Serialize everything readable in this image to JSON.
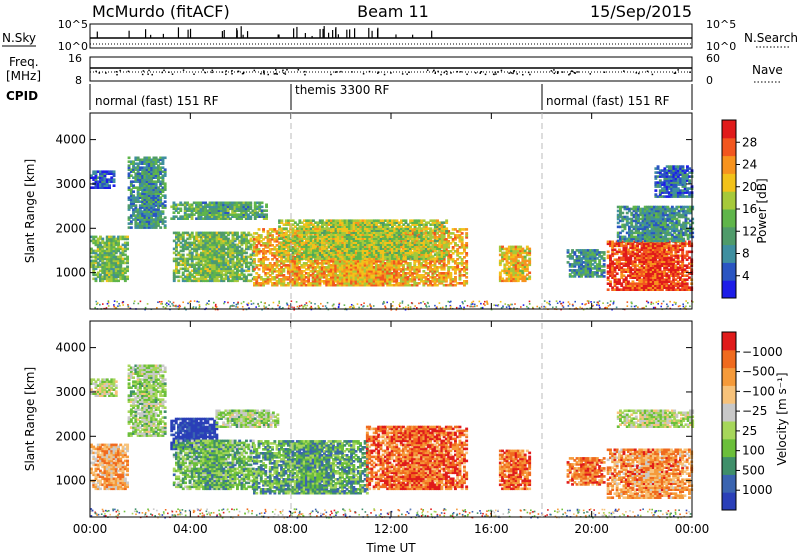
{
  "header": {
    "station": "McMurdo (fitACF)",
    "beam": "Beam 11",
    "date": "15/Sep/2015"
  },
  "top_strips": {
    "nsky_label": "N.Sky",
    "nsky_ticks": [
      "10^5",
      "10^0"
    ],
    "nsearch_label": "N.Search",
    "nsearch_ticks": [
      "10^5",
      "10^0"
    ],
    "freq_label_line1": "Freq.",
    "freq_label_line2": "[MHz]",
    "freq_ticks": [
      "16",
      "8"
    ],
    "nave_label": "Nave",
    "nave_ticks": [
      "60",
      "0"
    ],
    "cpid_label": "CPID",
    "cpid_segments": [
      {
        "start_hour": 0,
        "end_hour": 8,
        "label": "normal (fast) 151 RF"
      },
      {
        "start_hour": 8,
        "end_hour": 18,
        "label": "themis 3300 RF"
      },
      {
        "start_hour": 18,
        "end_hour": 24,
        "label": "normal (fast) 151 RF"
      }
    ]
  },
  "chart_data": [
    {
      "type": "heatmap",
      "panel": "power",
      "ylabel": "Slant Range [km]",
      "xlabel": "Time UT",
      "xlim_hours": [
        0,
        24
      ],
      "ylim_km": [
        180,
        4600
      ],
      "x_tick_labels": [
        "00:00",
        "04:00",
        "08:00",
        "12:00",
        "16:00",
        "20:00",
        "00:00"
      ],
      "x_tick_hours": [
        0,
        4,
        8,
        12,
        16,
        20,
        24
      ],
      "y_ticks": [
        1000,
        2000,
        3000,
        4000
      ],
      "colorbar": {
        "label": "Power [dB]",
        "tick_labels": [
          "4",
          "8",
          "12",
          "16",
          "20",
          "24",
          "28"
        ],
        "colors": [
          "#1d1de8",
          "#2a55c2",
          "#3f8fa0",
          "#4f9b6a",
          "#5fb54a",
          "#a6c93a",
          "#f2c21a",
          "#f7931e",
          "#f2561f",
          "#e01b1b"
        ]
      },
      "echo_regions": [
        {
          "t0": 0.0,
          "t1": 1.5,
          "r0": 800,
          "r1": 1800,
          "level": 0.45
        },
        {
          "t0": 0.0,
          "t1": 0.9,
          "r0": 2900,
          "r1": 3300,
          "level": 0.15
        },
        {
          "t0": 1.5,
          "t1": 3.0,
          "r0": 2000,
          "r1": 3600,
          "level": 0.3
        },
        {
          "t0": 3.2,
          "t1": 7.0,
          "r0": 2200,
          "r1": 2600,
          "level": 0.35
        },
        {
          "t0": 3.3,
          "t1": 6.5,
          "r0": 800,
          "r1": 1900,
          "level": 0.45
        },
        {
          "t0": 6.5,
          "t1": 15.0,
          "r0": 700,
          "r1": 2000,
          "level": 0.7
        },
        {
          "t0": 7.5,
          "t1": 14.2,
          "r0": 1300,
          "r1": 2200,
          "level": 0.55
        },
        {
          "t0": 16.3,
          "t1": 17.5,
          "r0": 800,
          "r1": 1600,
          "level": 0.65
        },
        {
          "t0": 19.0,
          "t1": 20.5,
          "r0": 900,
          "r1": 1500,
          "level": 0.3
        },
        {
          "t0": 20.6,
          "t1": 24.0,
          "r0": 600,
          "r1": 1700,
          "level": 0.9
        },
        {
          "t0": 21.0,
          "t1": 24.0,
          "r0": 1700,
          "r1": 2500,
          "level": 0.3
        },
        {
          "t0": 22.5,
          "t1": 24.0,
          "r0": 2700,
          "r1": 3400,
          "level": 0.2
        }
      ]
    },
    {
      "type": "heatmap",
      "panel": "velocity",
      "ylabel": "Slant Range [km]",
      "xlabel": "Time UT",
      "xlim_hours": [
        0,
        24
      ],
      "ylim_km": [
        180,
        4600
      ],
      "x_tick_labels": [
        "00:00",
        "04:00",
        "08:00",
        "12:00",
        "16:00",
        "20:00",
        "00:00"
      ],
      "x_tick_hours": [
        0,
        4,
        8,
        12,
        16,
        20,
        24
      ],
      "y_ticks": [
        1000,
        2000,
        3000,
        4000
      ],
      "colorbar": {
        "label": "Velocity [m s⁻¹]",
        "tick_labels": [
          "1000",
          "500",
          "100",
          "25",
          "−25",
          "−100",
          "−500",
          "−1000"
        ],
        "colors": [
          "#2a3fb8",
          "#3a64b0",
          "#3f8f6a",
          "#6bbf3a",
          "#a6d65a",
          "#c8c8c8",
          "#f7c27a",
          "#f59a3a",
          "#f06a1e",
          "#e01b1b"
        ]
      },
      "echo_regions": [
        {
          "t0": 0.0,
          "t1": 1.5,
          "r0": 800,
          "r1": 1800,
          "level": 0.7
        },
        {
          "t0": 0.0,
          "t1": 1.0,
          "r0": 2900,
          "r1": 3300,
          "level": 0.5
        },
        {
          "t0": 1.5,
          "t1": 3.0,
          "r0": 2000,
          "r1": 3600,
          "level": 0.45
        },
        {
          "t0": 3.2,
          "t1": 5.0,
          "r0": 1700,
          "r1": 2400,
          "level": 0.0
        },
        {
          "t0": 5.0,
          "t1": 7.5,
          "r0": 2200,
          "r1": 2600,
          "level": 0.45
        },
        {
          "t0": 3.3,
          "t1": 6.5,
          "r0": 800,
          "r1": 1900,
          "level": 0.35
        },
        {
          "t0": 6.5,
          "t1": 11.0,
          "r0": 700,
          "r1": 1900,
          "level": 0.3
        },
        {
          "t0": 11.0,
          "t1": 15.0,
          "r0": 800,
          "r1": 2200,
          "level": 0.85
        },
        {
          "t0": 16.3,
          "t1": 17.5,
          "r0": 800,
          "r1": 1700,
          "level": 0.85
        },
        {
          "t0": 19.0,
          "t1": 20.5,
          "r0": 900,
          "r1": 1500,
          "level": 0.8
        },
        {
          "t0": 20.6,
          "t1": 24.0,
          "r0": 600,
          "r1": 1700,
          "level": 0.75
        },
        {
          "t0": 21.0,
          "t1": 24.0,
          "r0": 2200,
          "r1": 2600,
          "level": 0.5
        }
      ]
    }
  ]
}
